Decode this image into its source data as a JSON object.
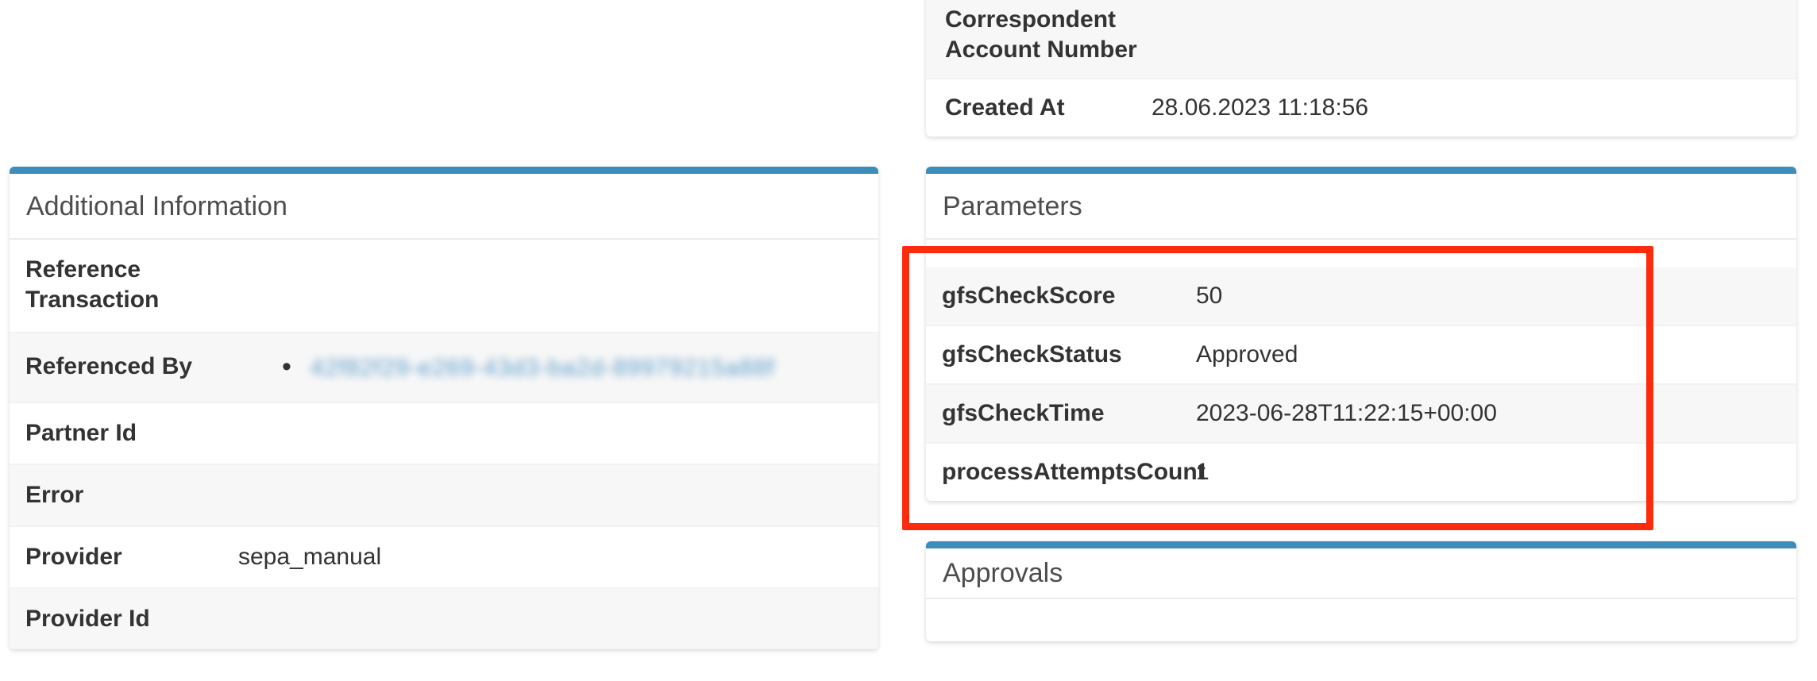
{
  "colors": {
    "card_accent_blue": "#3c8dbc",
    "annotation_red": "#fd2b0d",
    "label_text": "#333333",
    "header_text": "#4d4d4d",
    "stripe_gray": "#f7f7f7",
    "blurred_link_blue": "#5b9ccb"
  },
  "additional_information_card": {
    "title": "Additional Information",
    "rows": [
      {
        "label": "Reference Transaction",
        "value": ""
      },
      {
        "label": "Referenced By",
        "bullet": "•",
        "link_text": "42f82f29-e269-43d3-ba2d-89979215a88f",
        "blurred": true
      },
      {
        "label": "Partner Id",
        "value": ""
      },
      {
        "label": "Error",
        "value": ""
      },
      {
        "label": "Provider",
        "value": "sepa_manual"
      },
      {
        "label": "Provider Id",
        "value": ""
      }
    ]
  },
  "details_card": {
    "rows": [
      {
        "label": "Correspondent Account Number",
        "value": ""
      },
      {
        "label": "Created At",
        "value": "28.06.2023 11:18:56"
      }
    ]
  },
  "parameters_card": {
    "title": "Parameters",
    "rows": [
      {
        "label": "gfsCheckScore",
        "value": "50"
      },
      {
        "label": "gfsCheckStatus",
        "value": "Approved"
      },
      {
        "label": "gfsCheckTime",
        "value": "2023-06-28T11:22:15+00:00"
      },
      {
        "label": "processAttemptsCount",
        "value": "1"
      }
    ]
  },
  "approvals_card": {
    "title": "Approvals"
  }
}
